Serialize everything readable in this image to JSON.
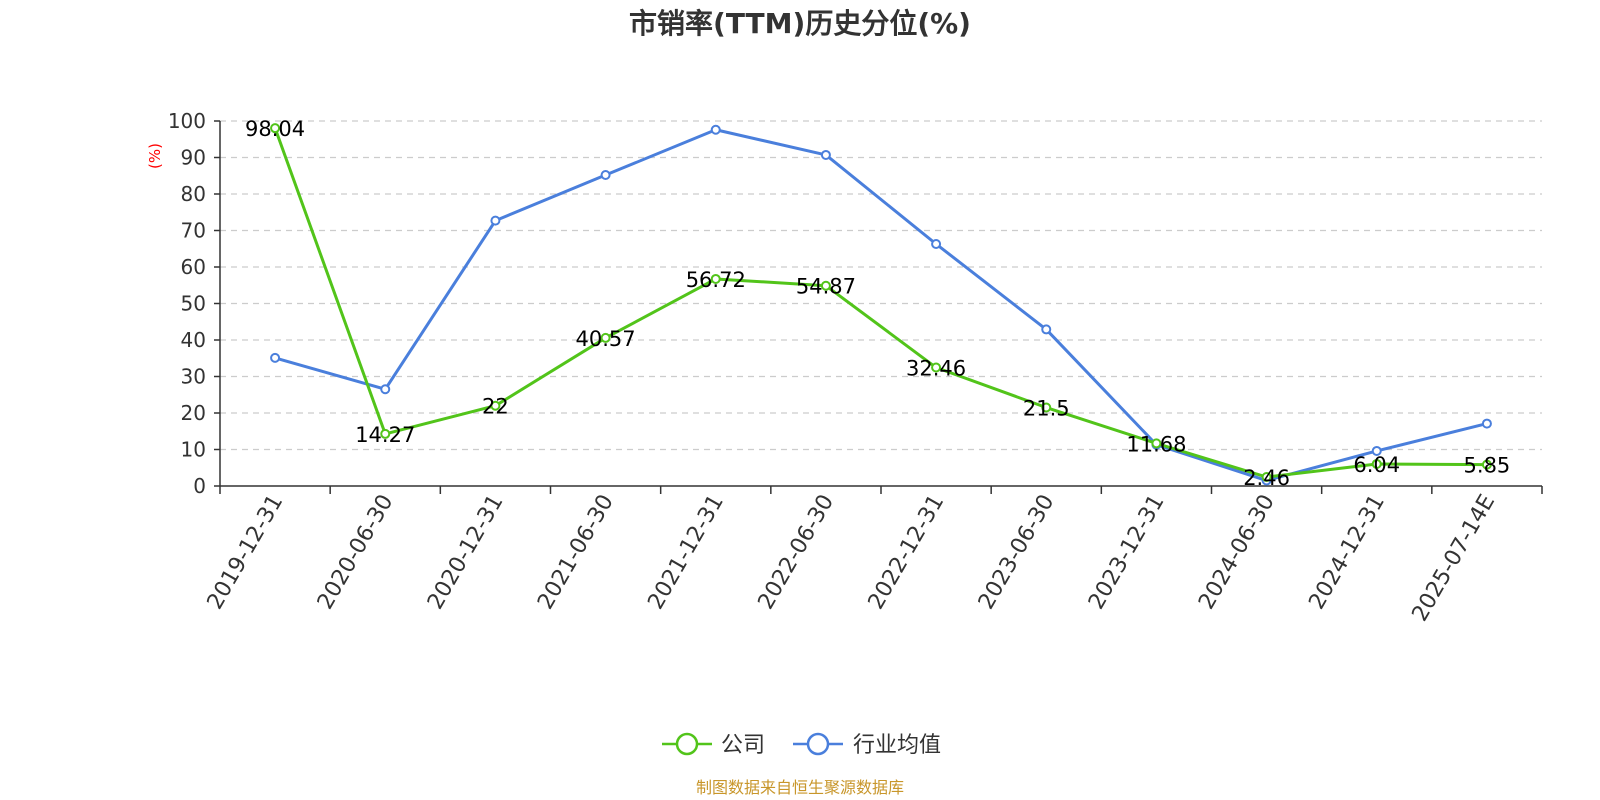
{
  "chart_data": {
    "type": "line",
    "title": "市销率(TTM)历史分位(%)",
    "ylabel": "(%)",
    "ylim": [
      0,
      100
    ],
    "yticks": [
      0,
      10,
      20,
      30,
      40,
      50,
      60,
      70,
      80,
      90,
      100
    ],
    "grid": true,
    "legend_position": "bottom-center",
    "categories": [
      "2019-12-31",
      "2020-06-30",
      "2020-12-31",
      "2021-06-30",
      "2021-12-31",
      "2022-06-30",
      "2022-12-31",
      "2023-06-30",
      "2023-12-31",
      "2024-06-30",
      "2024-12-31",
      "2025-07-14E"
    ],
    "series": [
      {
        "name": "公司",
        "color": "#52c41a",
        "values": [
          98.04,
          14.27,
          22,
          40.57,
          56.72,
          54.87,
          32.46,
          21.5,
          11.68,
          2.46,
          6.04,
          5.85
        ],
        "labels": [
          "98.04",
          "14.27",
          "22",
          "40.57",
          "56.72",
          "54.87",
          "32.46",
          "21.5",
          "11.68",
          "2.46",
          "6.04",
          "5.85"
        ]
      },
      {
        "name": "行业均值",
        "color": "#4a7fdc",
        "values": [
          35.1,
          26.5,
          72.7,
          85.2,
          97.6,
          90.7,
          66.3,
          42.9,
          11.3,
          1.5,
          9.6,
          17.1
        ]
      }
    ],
    "source": "制图数据来自恒生聚源数据库"
  }
}
